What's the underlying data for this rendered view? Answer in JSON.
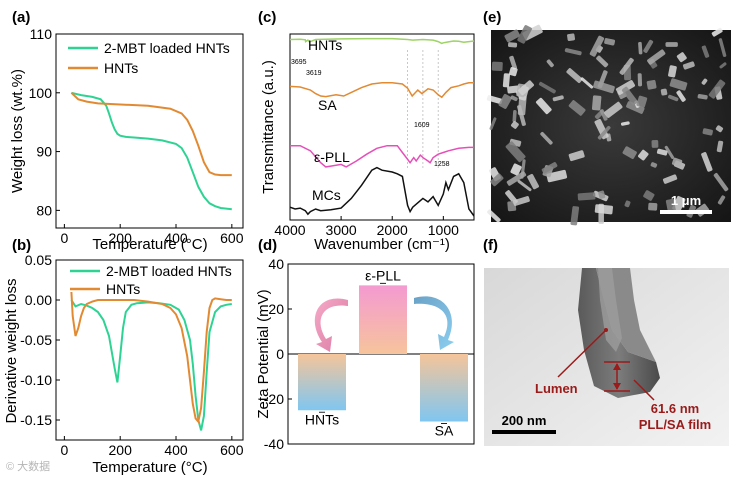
{
  "panels": {
    "a": {
      "label": "(a)"
    },
    "b": {
      "label": "(b)"
    },
    "c": {
      "label": "(c)"
    },
    "d": {
      "label": "(d)"
    },
    "e": {
      "label": "(e)",
      "scale_bar": "1 μm"
    },
    "f": {
      "label": "(f)",
      "scale_bar": "200 nm",
      "lumen_label": "Lumen",
      "film_label_1": "61.6 nm",
      "film_label_2": "PLL/SA film"
    }
  },
  "watermark": "© 大数据",
  "colors": {
    "green": "#2ed394",
    "orange": "#e28a32",
    "light_green": "#9ed365",
    "pink": "#e64fb9",
    "black": "#111111",
    "dark_red": "#9b1a1a"
  },
  "chart_data": [
    {
      "id": "a",
      "type": "line",
      "xlabel": "Temperature (°C)",
      "ylabel": "Weight loss (wt.%)",
      "xlim": [
        -30,
        640
      ],
      "ylim": [
        77,
        110
      ],
      "xticks": [
        0,
        200,
        400,
        600
      ],
      "yticks": [
        80,
        90,
        100,
        110
      ],
      "legend_position": "top-right",
      "series": [
        {
          "name": "2-MBT loaded HNTs",
          "color": "#2ed394",
          "x": [
            25,
            60,
            100,
            130,
            150,
            160,
            170,
            180,
            190,
            200,
            220,
            250,
            300,
            350,
            400,
            420,
            440,
            460,
            480,
            500,
            520,
            540,
            560,
            580,
            600
          ],
          "y": [
            100.0,
            99.6,
            99.3,
            98.9,
            97.8,
            96.5,
            95.0,
            93.8,
            93.0,
            92.7,
            92.5,
            92.4,
            92.2,
            91.9,
            91.3,
            90.6,
            89.0,
            86.5,
            84.0,
            82.3,
            81.2,
            80.7,
            80.4,
            80.3,
            80.2
          ]
        },
        {
          "name": "HNTs",
          "color": "#e28a32",
          "x": [
            25,
            50,
            80,
            120,
            200,
            300,
            380,
            420,
            440,
            460,
            480,
            500,
            520,
            540,
            560,
            600
          ],
          "y": [
            100.0,
            98.9,
            98.5,
            98.2,
            98.0,
            97.8,
            97.3,
            96.5,
            95.4,
            93.5,
            91.0,
            88.2,
            86.5,
            86.1,
            86.0,
            86.0
          ]
        }
      ]
    },
    {
      "id": "b",
      "type": "line",
      "xlabel": "Temperature (°C)",
      "ylabel": "Derivative weight loss",
      "xlim": [
        -30,
        640
      ],
      "ylim": [
        -0.175,
        0.05
      ],
      "xticks": [
        0,
        200,
        400,
        600
      ],
      "yticks": [
        0.05,
        0.0,
        -0.05,
        -0.1,
        -0.15
      ],
      "legend_position": "top-right",
      "series": [
        {
          "name": "2-MBT loaded HNTs",
          "color": "#2ed394",
          "x": [
            25,
            40,
            60,
            80,
            100,
            120,
            140,
            160,
            170,
            180,
            190,
            200,
            210,
            220,
            240,
            260,
            300,
            340,
            380,
            410,
            430,
            450,
            460,
            470,
            480,
            490,
            500,
            510,
            520,
            540,
            560,
            580,
            600
          ],
          "y": [
            0.0,
            -0.008,
            -0.005,
            -0.007,
            -0.01,
            -0.015,
            -0.025,
            -0.045,
            -0.065,
            -0.085,
            -0.103,
            -0.07,
            -0.035,
            -0.015,
            -0.006,
            -0.004,
            -0.003,
            -0.004,
            -0.006,
            -0.012,
            -0.025,
            -0.05,
            -0.08,
            -0.12,
            -0.15,
            -0.163,
            -0.145,
            -0.09,
            -0.04,
            -0.015,
            -0.008,
            -0.006,
            -0.005
          ]
        },
        {
          "name": "HNTs",
          "color": "#e28a32",
          "x": [
            25,
            30,
            40,
            50,
            60,
            70,
            80,
            100,
            120,
            150,
            200,
            250,
            300,
            350,
            380,
            400,
            420,
            440,
            450,
            460,
            470,
            480,
            490,
            500,
            510,
            520,
            530,
            540,
            560,
            580,
            600
          ],
          "y": [
            0.01,
            -0.02,
            -0.045,
            -0.035,
            -0.02,
            -0.01,
            -0.005,
            -0.002,
            0.0,
            0.0,
            0.0,
            0.0,
            -0.002,
            -0.005,
            -0.01,
            -0.018,
            -0.035,
            -0.07,
            -0.1,
            -0.13,
            -0.148,
            -0.152,
            -0.135,
            -0.09,
            -0.04,
            -0.01,
            0.0,
            0.002,
            0.001,
            0.0,
            0.0
          ]
        }
      ]
    },
    {
      "id": "c",
      "type": "line",
      "xlabel": "Wavenumber (cm⁻¹)",
      "ylabel": "Transmittance (a.u.)",
      "x_reversed": true,
      "xlim": [
        4000,
        400
      ],
      "xticks": [
        4000,
        3000,
        2000,
        1000
      ],
      "y_ticks_shown": false,
      "annotations": [
        "3695",
        "3619",
        "1609",
        "1258"
      ],
      "series": [
        {
          "name": "HNTs",
          "color": "#9ed365",
          "x": [
            4000,
            3800,
            3700,
            3695,
            3650,
            3619,
            3500,
            3000,
            2500,
            2000,
            1700,
            1600,
            1400,
            1200,
            1100,
            1030,
            1000,
            900,
            800,
            700,
            600,
            500,
            400
          ],
          "y": [
            0.95,
            0.96,
            0.94,
            0.88,
            0.93,
            0.87,
            0.95,
            0.97,
            0.98,
            0.98,
            0.95,
            0.93,
            0.95,
            0.93,
            0.88,
            0.82,
            0.84,
            0.87,
            0.9,
            0.89,
            0.86,
            0.88,
            0.9
          ]
        },
        {
          "name": "SA",
          "color": "#e28a32",
          "x": [
            4000,
            3800,
            3600,
            3500,
            3400,
            3300,
            3100,
            2950,
            2800,
            2600,
            2400,
            2200,
            2000,
            1800,
            1700,
            1609,
            1500,
            1420,
            1300,
            1200,
            1100,
            1030,
            950,
            850,
            700,
            600,
            500,
            400
          ],
          "y": [
            0.76,
            0.75,
            0.7,
            0.64,
            0.6,
            0.59,
            0.62,
            0.6,
            0.66,
            0.74,
            0.8,
            0.82,
            0.82,
            0.8,
            0.73,
            0.6,
            0.7,
            0.64,
            0.72,
            0.7,
            0.62,
            0.58,
            0.66,
            0.74,
            0.77,
            0.8,
            0.82,
            0.82
          ]
        },
        {
          "name": "ε-PLL",
          "color": "#e64fb9",
          "x": [
            4000,
            3800,
            3600,
            3400,
            3300,
            3200,
            3000,
            2900,
            2700,
            2500,
            2300,
            2100,
            1900,
            1800,
            1700,
            1650,
            1580,
            1530,
            1450,
            1400,
            1300,
            1258,
            1200,
            1100,
            1000,
            900,
            700,
            500,
            400
          ],
          "y": [
            0.58,
            0.58,
            0.52,
            0.38,
            0.33,
            0.34,
            0.36,
            0.33,
            0.4,
            0.48,
            0.55,
            0.58,
            0.58,
            0.5,
            0.42,
            0.38,
            0.44,
            0.4,
            0.47,
            0.44,
            0.4,
            0.38,
            0.44,
            0.48,
            0.5,
            0.52,
            0.55,
            0.56,
            0.56
          ]
        },
        {
          "name": "MCs",
          "color": "#111111",
          "x": [
            4000,
            3900,
            3800,
            3700,
            3650,
            3600,
            3500,
            3400,
            3200,
            3000,
            2800,
            2600,
            2400,
            2300,
            2200,
            2000,
            1900,
            1800,
            1700,
            1650,
            1600,
            1500,
            1400,
            1300,
            1200,
            1100,
            1000,
            950,
            900,
            800,
            700,
            600,
            500,
            400
          ],
          "y": [
            0.1,
            0.08,
            0.09,
            0.06,
            0.02,
            0.05,
            0.08,
            0.06,
            0.07,
            0.09,
            0.2,
            0.35,
            0.52,
            0.55,
            0.52,
            0.5,
            0.48,
            0.45,
            0.12,
            0.05,
            0.1,
            0.15,
            0.2,
            0.16,
            0.22,
            0.12,
            0.25,
            0.38,
            0.3,
            0.45,
            0.48,
            0.38,
            0.08,
            0.0
          ]
        }
      ]
    },
    {
      "id": "d",
      "type": "bar",
      "ylabel": "Zeta Potential (mV)",
      "ylim": [
        -40,
        40
      ],
      "yticks": [
        -40,
        -20,
        0,
        20,
        40
      ],
      "categories": [
        "HNTs",
        "ε-PLL",
        "SA"
      ],
      "values": [
        -25,
        30.5,
        -30
      ]
    }
  ]
}
